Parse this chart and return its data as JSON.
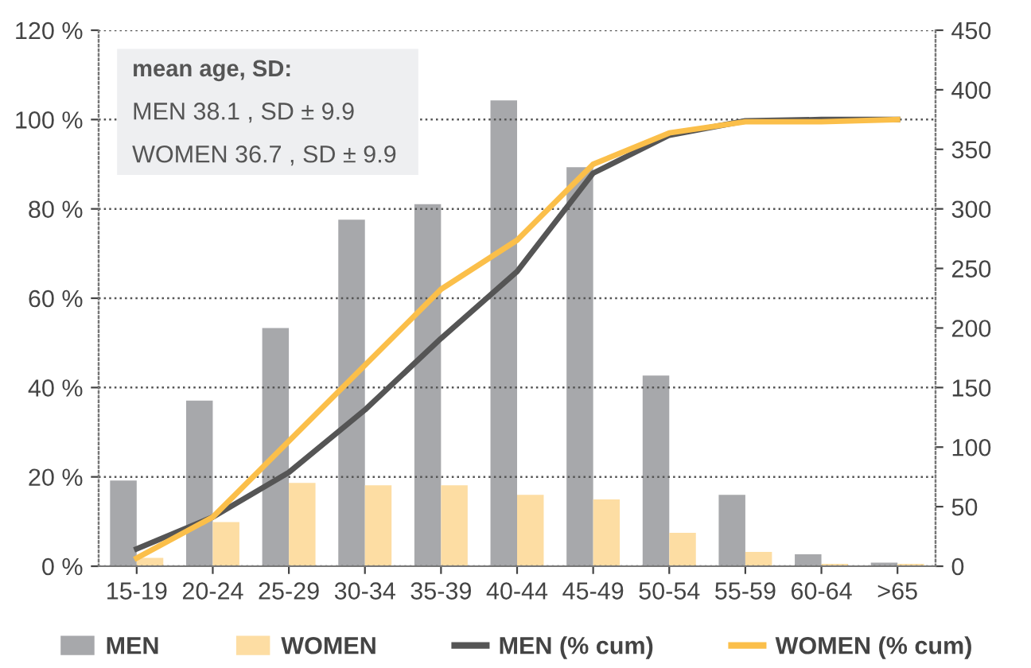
{
  "chart_data": {
    "type": "bar",
    "categories": [
      "15-19",
      "20-24",
      "25-29",
      "30-34",
      "35-39",
      "40-44",
      "45-49",
      "50-54",
      "55-59",
      "60-64",
      ">65"
    ],
    "series": [
      {
        "name": "MEN",
        "axis": "y2",
        "color": "#a7a8ab",
        "values": [
          72,
          139,
          200,
          291,
          304,
          391,
          335,
          160,
          60,
          10,
          3
        ]
      },
      {
        "name": "WOMEN",
        "axis": "y2",
        "color": "#fddda3",
        "values": [
          7,
          37,
          70,
          68,
          68,
          60,
          56,
          28,
          12,
          2,
          2
        ]
      },
      {
        "name": "MEN (% cum)",
        "type": "line",
        "axis": "y",
        "color": "#555555",
        "values": [
          3.9,
          11,
          21,
          35,
          51,
          66,
          88,
          96.5,
          99.7,
          100,
          100
        ]
      },
      {
        "name": "WOMEN (% cum)",
        "type": "line",
        "axis": "y",
        "color": "#fbbf4a",
        "values": [
          1.8,
          11,
          28,
          45,
          62,
          73,
          90,
          97,
          99.5,
          99.5,
          100
        ]
      }
    ],
    "ylim": [
      0,
      120
    ],
    "yticks": [
      {
        "value": 0,
        "label": "0 %"
      },
      {
        "value": 20,
        "label": "20 %"
      },
      {
        "value": 40,
        "label": "40 %"
      },
      {
        "value": 60,
        "label": "60 %"
      },
      {
        "value": 80,
        "label": "80 %"
      },
      {
        "value": 100,
        "label": "100 %"
      },
      {
        "value": 120,
        "label": "120 %"
      }
    ],
    "y2lim": [
      0,
      450
    ],
    "y2ticks": [
      0,
      50,
      100,
      150,
      200,
      250,
      300,
      350,
      400,
      450
    ],
    "grid": "y",
    "legend": "bottom",
    "marker": "none",
    "line_style": "solid",
    "annotations": [
      "mean age, SD:",
      "MEN 38.1 , SD ± 9.9",
      "WOMEN 36.7 , SD ± 9.9"
    ]
  }
}
